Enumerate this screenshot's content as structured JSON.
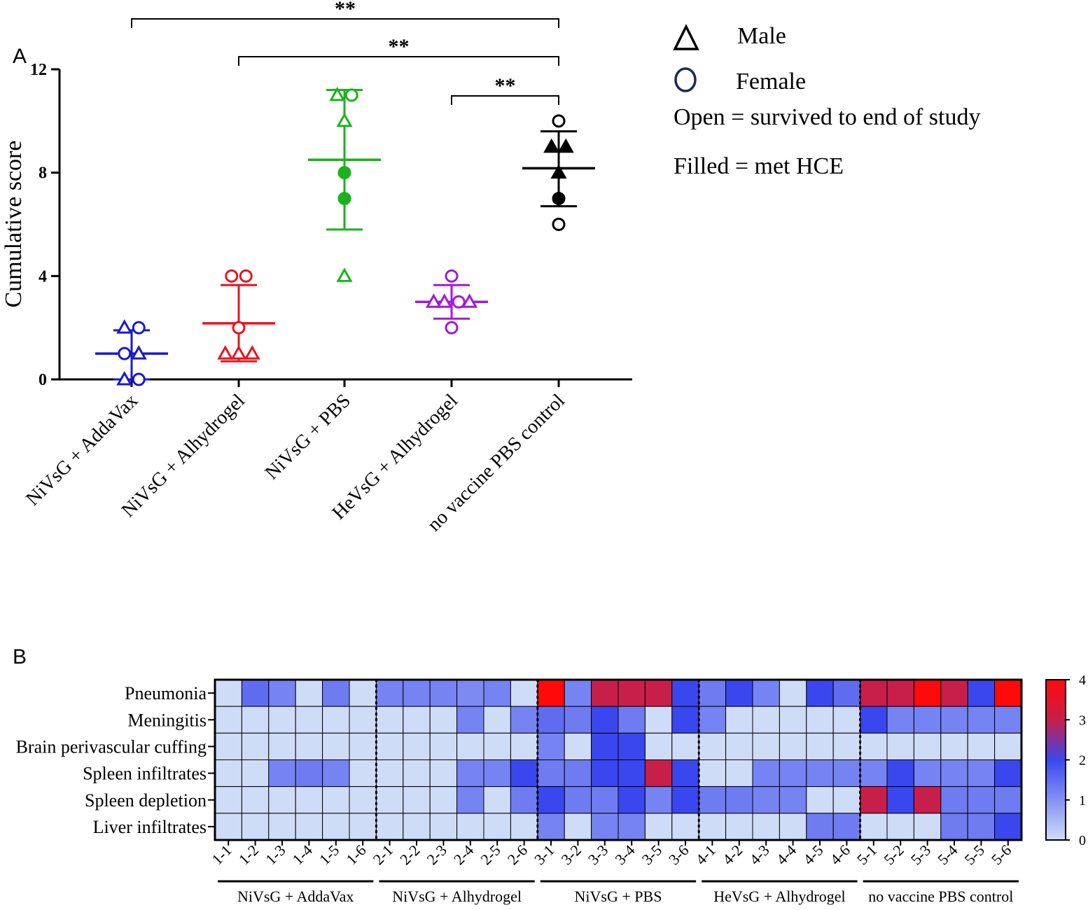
{
  "panel_labels": {
    "a": "A",
    "b": "B"
  },
  "legend": {
    "male_label": "Male",
    "female_label": "Female",
    "open_note": "Open = survived to end of study",
    "filled_note": "Filled = met HCE"
  },
  "chart_data": [
    {
      "type": "scatter",
      "title": "",
      "xlabel": "",
      "ylabel": "Cumulative score",
      "ylim": [
        0,
        12
      ],
      "yticks": [
        "0",
        "4",
        "8",
        "12"
      ],
      "categories": [
        "NiVsG + AddaVax",
        "NiVsG + Alhydrogel",
        "NiVsG + PBS",
        "HeVsG + Alhydrogel",
        "no vaccine PBS control"
      ],
      "colors": [
        "#1a1acc",
        "#e8141e",
        "#1ab31a",
        "#a31ad6",
        "#000000"
      ],
      "groups": [
        {
          "mean": 1.0,
          "sd_low": 0.0,
          "sd_high": 1.9,
          "points": [
            {
              "y": 2,
              "dx": -0.32,
              "sex": "male",
              "filled": false
            },
            {
              "y": 2,
              "dx": 0.32,
              "sex": "female",
              "filled": false
            },
            {
              "y": 1,
              "dx": -0.32,
              "sex": "female",
              "filled": false
            },
            {
              "y": 1,
              "dx": 0.32,
              "sex": "male",
              "filled": false
            },
            {
              "y": 0,
              "dx": -0.32,
              "sex": "male",
              "filled": false
            },
            {
              "y": 0,
              "dx": 0.32,
              "sex": "female",
              "filled": false
            }
          ]
        },
        {
          "mean": 2.17,
          "sd_low": 0.7,
          "sd_high": 3.65,
          "points": [
            {
              "y": 4,
              "dx": -0.32,
              "sex": "female",
              "filled": false
            },
            {
              "y": 4,
              "dx": 0.32,
              "sex": "female",
              "filled": false
            },
            {
              "y": 2,
              "dx": 0,
              "sex": "female",
              "filled": false
            },
            {
              "y": 1,
              "dx": -0.6,
              "sex": "male",
              "filled": false
            },
            {
              "y": 1,
              "dx": 0,
              "sex": "male",
              "filled": false
            },
            {
              "y": 1,
              "dx": 0.6,
              "sex": "male",
              "filled": false
            }
          ]
        },
        {
          "mean": 8.5,
          "sd_low": 5.8,
          "sd_high": 11.2,
          "points": [
            {
              "y": 11,
              "dx": -0.32,
              "sex": "male",
              "filled": false
            },
            {
              "y": 11,
              "dx": 0.32,
              "sex": "female",
              "filled": false
            },
            {
              "y": 10,
              "dx": 0,
              "sex": "male",
              "filled": false
            },
            {
              "y": 8,
              "dx": 0,
              "sex": "female",
              "filled": true
            },
            {
              "y": 7,
              "dx": 0,
              "sex": "female",
              "filled": true
            },
            {
              "y": 4,
              "dx": 0,
              "sex": "male",
              "filled": false
            }
          ]
        },
        {
          "mean": 3.0,
          "sd_low": 2.35,
          "sd_high": 3.65,
          "points": [
            {
              "y": 4,
              "dx": 0,
              "sex": "female",
              "filled": false
            },
            {
              "y": 3,
              "dx": -0.8,
              "sex": "male",
              "filled": false
            },
            {
              "y": 3,
              "dx": -0.32,
              "sex": "male",
              "filled": false
            },
            {
              "y": 3,
              "dx": 0.32,
              "sex": "female",
              "filled": false
            },
            {
              "y": 3,
              "dx": 0.8,
              "sex": "male",
              "filled": false
            },
            {
              "y": 2,
              "dx": 0,
              "sex": "female",
              "filled": false
            }
          ]
        },
        {
          "mean": 8.17,
          "sd_low": 6.7,
          "sd_high": 9.6,
          "points": [
            {
              "y": 10,
              "dx": 0,
              "sex": "female",
              "filled": false
            },
            {
              "y": 9,
              "dx": -0.32,
              "sex": "male",
              "filled": true
            },
            {
              "y": 9,
              "dx": 0.32,
              "sex": "male",
              "filled": true
            },
            {
              "y": 8,
              "dx": 0,
              "sex": "male",
              "filled": true
            },
            {
              "y": 7,
              "dx": 0,
              "sex": "female",
              "filled": true
            },
            {
              "y": 6,
              "dx": 0,
              "sex": "female",
              "filled": false
            }
          ]
        }
      ],
      "significance": [
        {
          "from": 0,
          "to": 4,
          "label": "**"
        },
        {
          "from": 1,
          "to": 4,
          "label": "**"
        },
        {
          "from": 3,
          "to": 4,
          "label": "**"
        }
      ]
    },
    {
      "type": "heatmap",
      "title": "",
      "rows": [
        "Pneumonia",
        "Meningitis",
        "Brain perivascular cuffing",
        "Spleen infiltrates",
        "Spleen depletion",
        "Liver infiltrates"
      ],
      "columns": [
        "1-1",
        "1-2",
        "1-3",
        "1-4",
        "1-5",
        "1-6",
        "2-1",
        "2-2",
        "2-3",
        "2-4",
        "2-5",
        "2-6",
        "3-1",
        "3-2",
        "3-3",
        "3-4",
        "3-5",
        "3-6",
        "4-1",
        "4-2",
        "4-3",
        "4-4",
        "4-5",
        "4-6",
        "5-1",
        "5-2",
        "5-3",
        "5-4",
        "5-5",
        "5-6"
      ],
      "values": [
        [
          0,
          1.5,
          1.2,
          0,
          1.3,
          0,
          1.2,
          1.2,
          1.2,
          1.1,
          1.2,
          0,
          4,
          1.2,
          3,
          3,
          3,
          2,
          1.3,
          2,
          1.2,
          0,
          2,
          1.5,
          3,
          3,
          4,
          3,
          2,
          4
        ],
        [
          0,
          0,
          0,
          0,
          0,
          0,
          0,
          0,
          0,
          1.2,
          0,
          1.2,
          1.5,
          1.3,
          2,
          1.3,
          0,
          2,
          1.2,
          0,
          0,
          0,
          0,
          0,
          2,
          1.2,
          1.2,
          1.2,
          1.2,
          1.2
        ],
        [
          0,
          0,
          0,
          0,
          0,
          0,
          0,
          0,
          0,
          0,
          0,
          0,
          1.2,
          0,
          2,
          2,
          0,
          0,
          0,
          0,
          0,
          0,
          0,
          0,
          0,
          0,
          0,
          0,
          0,
          0
        ],
        [
          0,
          0,
          1.2,
          1.3,
          1.2,
          0,
          0,
          0,
          0,
          1.2,
          1.2,
          2,
          1.3,
          1.3,
          2,
          2,
          3,
          2,
          0,
          0,
          1.2,
          1.2,
          1.2,
          1.2,
          1.2,
          2,
          1.2,
          1.2,
          1.2,
          2
        ],
        [
          0,
          0,
          0,
          0,
          0,
          0,
          0,
          0,
          0,
          1.2,
          0,
          1.3,
          2,
          1.3,
          1.3,
          2,
          1.2,
          2,
          1.3,
          1.3,
          1.2,
          1.2,
          0,
          0,
          3,
          2,
          3,
          1.3,
          1.3,
          1.3
        ],
        [
          0,
          0,
          0,
          0,
          0,
          0,
          0,
          0,
          0,
          0,
          0,
          0,
          1.2,
          0,
          1.2,
          1.2,
          0,
          0,
          0,
          0,
          0,
          0,
          1.3,
          1.3,
          0,
          0,
          0,
          1.3,
          1.3,
          2
        ]
      ],
      "group_labels": [
        "NiVsG + AddaVax",
        "NiVsG + Alhydrogel",
        "NiVsG + PBS",
        "HeVsG + Alhydrogel",
        "no vaccine PBS control"
      ],
      "colorbar": {
        "min": 0,
        "max": 4,
        "ticks": [
          "0",
          "1",
          "2",
          "3",
          "4"
        ],
        "stops": [
          "#cfdcf7",
          "#3a47ee",
          "#c81e4a",
          "#ff0a0a"
        ]
      }
    }
  ]
}
